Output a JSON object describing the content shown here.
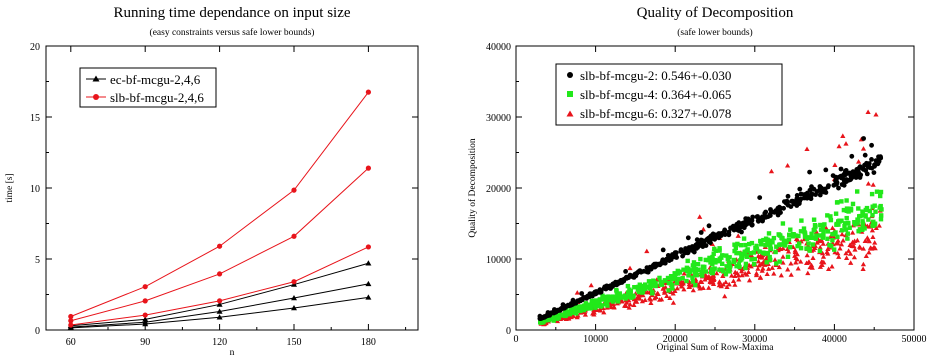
{
  "chart_data": [
    {
      "type": "line",
      "title": "Running time dependance on input size",
      "subtitle": "(easy constraints versus safe lower bounds)",
      "xlabel": "n",
      "ylabel": "time [s]",
      "xlim": [
        50,
        200
      ],
      "ylim": [
        0,
        20
      ],
      "xticks": [
        60,
        90,
        120,
        150,
        180
      ],
      "xtick_labels": [
        "60",
        "90",
        "120",
        "150",
        "180"
      ],
      "yticks": [
        0,
        5,
        10,
        15,
        20
      ],
      "ytick_labels": [
        "0",
        "5",
        "10",
        "15",
        "20"
      ],
      "legend_position": "top-left",
      "legend": [
        {
          "label": "ec-bf-mcgu-2,4,6",
          "color": "#000000",
          "marker": "triangle"
        },
        {
          "label": "slb-bf-mcgu-2,4,6",
          "color": "#e8141b",
          "marker": "circle"
        }
      ],
      "x": [
        60,
        90,
        120,
        150,
        180
      ],
      "series": [
        {
          "group": 0,
          "color": "#000000",
          "marker": "triangle",
          "values": [
            0.3,
            0.75,
            1.8,
            3.2,
            4.7
          ]
        },
        {
          "group": 0,
          "color": "#000000",
          "marker": "triangle",
          "values": [
            0.2,
            0.55,
            1.3,
            2.25,
            3.25
          ]
        },
        {
          "group": 0,
          "color": "#000000",
          "marker": "triangle",
          "values": [
            0.15,
            0.42,
            0.9,
            1.55,
            2.3
          ]
        },
        {
          "group": 1,
          "color": "#e8141b",
          "marker": "circle",
          "values": [
            0.95,
            3.05,
            5.9,
            9.85,
            16.75
          ]
        },
        {
          "group": 1,
          "color": "#e8141b",
          "marker": "circle",
          "values": [
            0.65,
            2.05,
            3.95,
            6.6,
            11.4
          ]
        },
        {
          "group": 1,
          "color": "#e8141b",
          "marker": "circle",
          "values": [
            0.35,
            1.05,
            2.05,
            3.4,
            5.85
          ]
        }
      ]
    },
    {
      "type": "scatter",
      "title": "Quality of Decomposition",
      "subtitle": "(safe lower bounds)",
      "xlabel": "Original Sum of Row-Maxima",
      "ylabel": "Quality of Decomposition",
      "xlim": [
        0,
        50000
      ],
      "ylim": [
        0,
        40000
      ],
      "xticks": [
        0,
        10000,
        20000,
        30000,
        40000,
        50000
      ],
      "xtick_labels": [
        "0",
        "10000",
        "20000",
        "30000",
        "40000",
        "50000"
      ],
      "yticks": [
        0,
        10000,
        20000,
        30000,
        40000
      ],
      "ytick_labels": [
        "0",
        "10000",
        "20000",
        "30000",
        "40000"
      ],
      "legend_position": "top-left",
      "x_range_of_points": [
        3000,
        46000
      ],
      "series": [
        {
          "name": "slb-bf-mcgu-2: 0.546+-0.030",
          "color": "#000000",
          "marker": "circle",
          "point_count": 500,
          "mean_ratio": 0.546,
          "spread": 0.03
        },
        {
          "name": "slb-bf-mcgu-4: 0.364+-0.065",
          "color": "#22e81a",
          "marker": "square",
          "point_count": 500,
          "mean_ratio": 0.364,
          "spread": 0.065
        },
        {
          "name": "slb-bf-mcgu-6: 0.327+-0.078",
          "color": "#e8141b",
          "marker": "triangle",
          "point_count": 500,
          "mean_ratio": 0.327,
          "spread": 0.078
        }
      ]
    }
  ]
}
